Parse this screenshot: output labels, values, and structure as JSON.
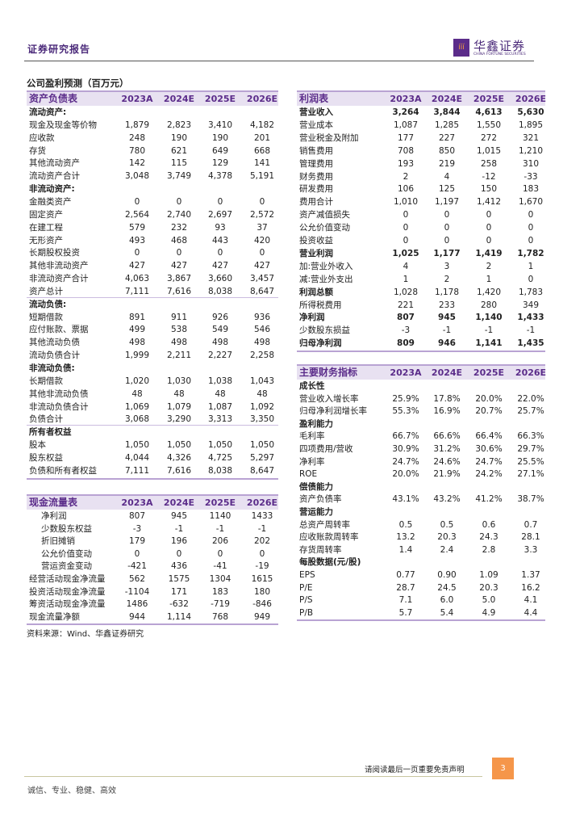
{
  "header": {
    "title": "证券研究报告",
    "logo_cn": "华鑫证券",
    "logo_en": "CHINA FORTUNE SECURITIES"
  },
  "section_title": "公司盈利预测（百万元）",
  "colors": {
    "accent": "#5b2c8a",
    "header_bg": "#e8e1f1",
    "page_badge": "#f5964a"
  },
  "balance_sheet": {
    "title": "资产负债表",
    "years": [
      "2023A",
      "2024E",
      "2025E",
      "2026E"
    ],
    "rows": [
      {
        "label": "流动资产:",
        "type": "section",
        "values": []
      },
      {
        "label": "现金及现金等价物",
        "values": [
          "1,879",
          "2,823",
          "3,410",
          "4,182"
        ]
      },
      {
        "label": "应收款",
        "values": [
          "248",
          "190",
          "190",
          "201"
        ]
      },
      {
        "label": "存货",
        "values": [
          "780",
          "621",
          "649",
          "668"
        ]
      },
      {
        "label": "其他流动资产",
        "values": [
          "142",
          "115",
          "129",
          "141"
        ]
      },
      {
        "label": "流动资产合计",
        "values": [
          "3,048",
          "3,749",
          "4,378",
          "5,191"
        ]
      },
      {
        "label": "非流动资产:",
        "type": "section",
        "values": []
      },
      {
        "label": "金融类资产",
        "values": [
          "0",
          "0",
          "0",
          "0"
        ]
      },
      {
        "label": "固定资产",
        "values": [
          "2,564",
          "2,740",
          "2,697",
          "2,572"
        ]
      },
      {
        "label": "在建工程",
        "values": [
          "579",
          "232",
          "93",
          "37"
        ]
      },
      {
        "label": "无形资产",
        "values": [
          "493",
          "468",
          "443",
          "420"
        ]
      },
      {
        "label": "长期股权投资",
        "values": [
          "0",
          "0",
          "0",
          "0"
        ]
      },
      {
        "label": "其他非流动资产",
        "values": [
          "427",
          "427",
          "427",
          "427"
        ]
      },
      {
        "label": "非流动资产合计",
        "values": [
          "4,063",
          "3,867",
          "3,660",
          "3,457"
        ]
      },
      {
        "label": "资产总计",
        "values": [
          "7,111",
          "7,616",
          "8,038",
          "8,647"
        ],
        "rule": true
      },
      {
        "label": "流动负债:",
        "type": "section",
        "values": []
      },
      {
        "label": "短期借款",
        "values": [
          "891",
          "911",
          "926",
          "936"
        ]
      },
      {
        "label": "应付账款、票据",
        "values": [
          "499",
          "538",
          "549",
          "546"
        ]
      },
      {
        "label": "其他流动负债",
        "values": [
          "498",
          "498",
          "498",
          "498"
        ]
      },
      {
        "label": "流动负债合计",
        "values": [
          "1,999",
          "2,211",
          "2,227",
          "2,258"
        ]
      },
      {
        "label": "非流动负债:",
        "type": "section",
        "values": []
      },
      {
        "label": "长期借款",
        "values": [
          "1,020",
          "1,030",
          "1,038",
          "1,043"
        ]
      },
      {
        "label": "其他非流动负债",
        "values": [
          "48",
          "48",
          "48",
          "48"
        ]
      },
      {
        "label": "非流动负债合计",
        "values": [
          "1,069",
          "1,079",
          "1,087",
          "1,092"
        ]
      },
      {
        "label": "负债合计",
        "values": [
          "3,068",
          "3,290",
          "3,313",
          "3,350"
        ],
        "rule": true
      },
      {
        "label": "所有者权益",
        "type": "section",
        "values": []
      },
      {
        "label": "股本",
        "values": [
          "1,050",
          "1,050",
          "1,050",
          "1,050"
        ]
      },
      {
        "label": "股东权益",
        "values": [
          "4,044",
          "4,326",
          "4,725",
          "5,297"
        ]
      },
      {
        "label": "负债和所有者权益",
        "values": [
          "7,111",
          "7,616",
          "8,038",
          "8,647"
        ]
      }
    ]
  },
  "cash_flow": {
    "title": "现金流量表",
    "years": [
      "2023A",
      "2024E",
      "2025E",
      "2026E"
    ],
    "rows": [
      {
        "label": "净利润",
        "type": "indent",
        "values": [
          "807",
          "945",
          "1140",
          "1433"
        ]
      },
      {
        "label": "少数股东权益",
        "type": "indent",
        "values": [
          "-3",
          "-1",
          "-1",
          "-1"
        ]
      },
      {
        "label": "折旧摊销",
        "type": "indent",
        "values": [
          "179",
          "196",
          "206",
          "202"
        ]
      },
      {
        "label": "公允价值变动",
        "type": "indent",
        "values": [
          "0",
          "0",
          "0",
          "0"
        ]
      },
      {
        "label": "营运资金变动",
        "type": "indent",
        "values": [
          "-421",
          "436",
          "-41",
          "-19"
        ]
      },
      {
        "label": "经营活动现金净流量",
        "values": [
          "562",
          "1575",
          "1304",
          "1615"
        ]
      },
      {
        "label": "投资活动现金净流量",
        "values": [
          "-1104",
          "171",
          "183",
          "180"
        ]
      },
      {
        "label": "筹资活动现金净流量",
        "values": [
          "1486",
          "-632",
          "-719",
          "-846"
        ]
      },
      {
        "label": "现金流量净额",
        "values": [
          "944",
          "1,114",
          "768",
          "949"
        ]
      }
    ]
  },
  "income_statement": {
    "title": "利润表",
    "years": [
      "2023A",
      "2024E",
      "2025E",
      "2026E"
    ],
    "rows": [
      {
        "label": "营业收入",
        "type": "bold",
        "values": [
          "3,264",
          "3,844",
          "4,613",
          "5,630"
        ]
      },
      {
        "label": "营业成本",
        "values": [
          "1,087",
          "1,285",
          "1,550",
          "1,895"
        ]
      },
      {
        "label": "营业税金及附加",
        "values": [
          "177",
          "227",
          "272",
          "321"
        ]
      },
      {
        "label": "销售费用",
        "values": [
          "708",
          "850",
          "1,015",
          "1,210"
        ]
      },
      {
        "label": "管理费用",
        "values": [
          "193",
          "219",
          "258",
          "310"
        ]
      },
      {
        "label": "财务费用",
        "values": [
          "2",
          "4",
          "-12",
          "-33"
        ]
      },
      {
        "label": "研发费用",
        "values": [
          "106",
          "125",
          "150",
          "183"
        ]
      },
      {
        "label": "费用合计",
        "values": [
          "1,010",
          "1,197",
          "1,412",
          "1,670"
        ]
      },
      {
        "label": "资产减值损失",
        "values": [
          "0",
          "0",
          "0",
          "0"
        ]
      },
      {
        "label": "公允价值变动",
        "values": [
          "0",
          "0",
          "0",
          "0"
        ]
      },
      {
        "label": "投资收益",
        "values": [
          "0",
          "0",
          "0",
          "0"
        ]
      },
      {
        "label": "营业利润",
        "type": "bold",
        "values": [
          "1,025",
          "1,177",
          "1,419",
          "1,782"
        ]
      },
      {
        "label": "加:营业外收入",
        "values": [
          "4",
          "3",
          "2",
          "1"
        ]
      },
      {
        "label": "减:营业外支出",
        "values": [
          "1",
          "2",
          "1",
          "0"
        ]
      },
      {
        "label": "利润总额",
        "type": "boldlabel",
        "values": [
          "1,028",
          "1,178",
          "1,420",
          "1,783"
        ]
      },
      {
        "label": "所得税费用",
        "values": [
          "221",
          "233",
          "280",
          "349"
        ]
      },
      {
        "label": "净利润",
        "type": "bold",
        "values": [
          "807",
          "945",
          "1,140",
          "1,433"
        ]
      },
      {
        "label": "少数股东损益",
        "values": [
          "-3",
          "-1",
          "-1",
          "-1"
        ]
      },
      {
        "label": "归母净利润",
        "type": "bold",
        "values": [
          "809",
          "946",
          "1,141",
          "1,435"
        ]
      }
    ]
  },
  "key_indicators": {
    "title": "主要财务指标",
    "years": [
      "2023A",
      "2024E",
      "2025E",
      "2026E"
    ],
    "rows": [
      {
        "label": "成长性",
        "type": "section",
        "values": []
      },
      {
        "label": "营业收入增长率",
        "values": [
          "25.9%",
          "17.8%",
          "20.0%",
          "22.0%"
        ]
      },
      {
        "label": "归母净利润增长率",
        "values": [
          "55.3%",
          "16.9%",
          "20.7%",
          "25.7%"
        ]
      },
      {
        "label": "盈利能力",
        "type": "section",
        "values": []
      },
      {
        "label": "毛利率",
        "values": [
          "66.7%",
          "66.6%",
          "66.4%",
          "66.3%"
        ]
      },
      {
        "label": "四项费用/营收",
        "values": [
          "30.9%",
          "31.2%",
          "30.6%",
          "29.7%"
        ]
      },
      {
        "label": "净利率",
        "values": [
          "24.7%",
          "24.6%",
          "24.7%",
          "25.5%"
        ]
      },
      {
        "label": "ROE",
        "values": [
          "20.0%",
          "21.9%",
          "24.2%",
          "27.1%"
        ]
      },
      {
        "label": "偿债能力",
        "type": "section",
        "values": []
      },
      {
        "label": "资产负债率",
        "values": [
          "43.1%",
          "43.2%",
          "41.2%",
          "38.7%"
        ]
      },
      {
        "label": "营运能力",
        "type": "section",
        "values": []
      },
      {
        "label": "总资产周转率",
        "values": [
          "0.5",
          "0.5",
          "0.6",
          "0.7"
        ]
      },
      {
        "label": "应收账款周转率",
        "values": [
          "13.2",
          "20.3",
          "24.3",
          "28.1"
        ]
      },
      {
        "label": "存货周转率",
        "values": [
          "1.4",
          "2.4",
          "2.8",
          "3.3"
        ]
      },
      {
        "label": "每股数据(元/股)",
        "type": "section",
        "values": []
      },
      {
        "label": "EPS",
        "values": [
          "0.77",
          "0.90",
          "1.09",
          "1.37"
        ]
      },
      {
        "label": "P/E",
        "values": [
          "28.7",
          "24.5",
          "20.3",
          "16.2"
        ]
      },
      {
        "label": "P/S",
        "values": [
          "7.1",
          "6.0",
          "5.0",
          "4.1"
        ]
      },
      {
        "label": "P/B",
        "values": [
          "5.7",
          "5.4",
          "4.9",
          "4.4"
        ]
      }
    ]
  },
  "source": "资料来源：Wind、华鑫证券研究",
  "footer": {
    "note": "请阅读最后一页重要免责声明",
    "page": "3",
    "motto": "诚信、专业、稳健、高效"
  }
}
